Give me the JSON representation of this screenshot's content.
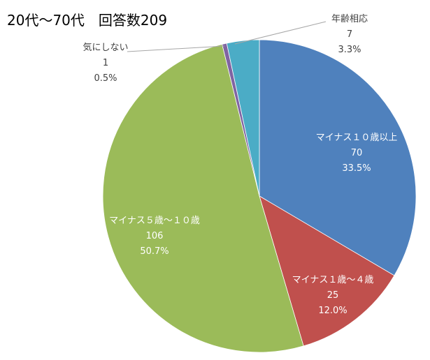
{
  "chart_data": {
    "type": "pie",
    "title": "20代～70代　回答数209",
    "slices": [
      {
        "label": "マイナス１０歳以上",
        "value": 70,
        "percent": "33.5%",
        "color": "#4f81bd"
      },
      {
        "label": "マイナス１歳～４歳",
        "value": 25,
        "percent": "12.0%",
        "color": "#c0504d"
      },
      {
        "label": "マイナス５歳～１０歳",
        "value": 106,
        "percent": "50.7%",
        "color": "#9bbb59"
      },
      {
        "label": "気にしない",
        "value": 1,
        "percent": "0.5%",
        "color": "#8064a2"
      },
      {
        "label": "年齢相応",
        "value": 7,
        "percent": "3.3%",
        "color": "#4bacc6"
      }
    ],
    "start": "12 o'clock",
    "direction": "clockwise",
    "legend": "none",
    "data_labels": "category, value, percentage"
  }
}
